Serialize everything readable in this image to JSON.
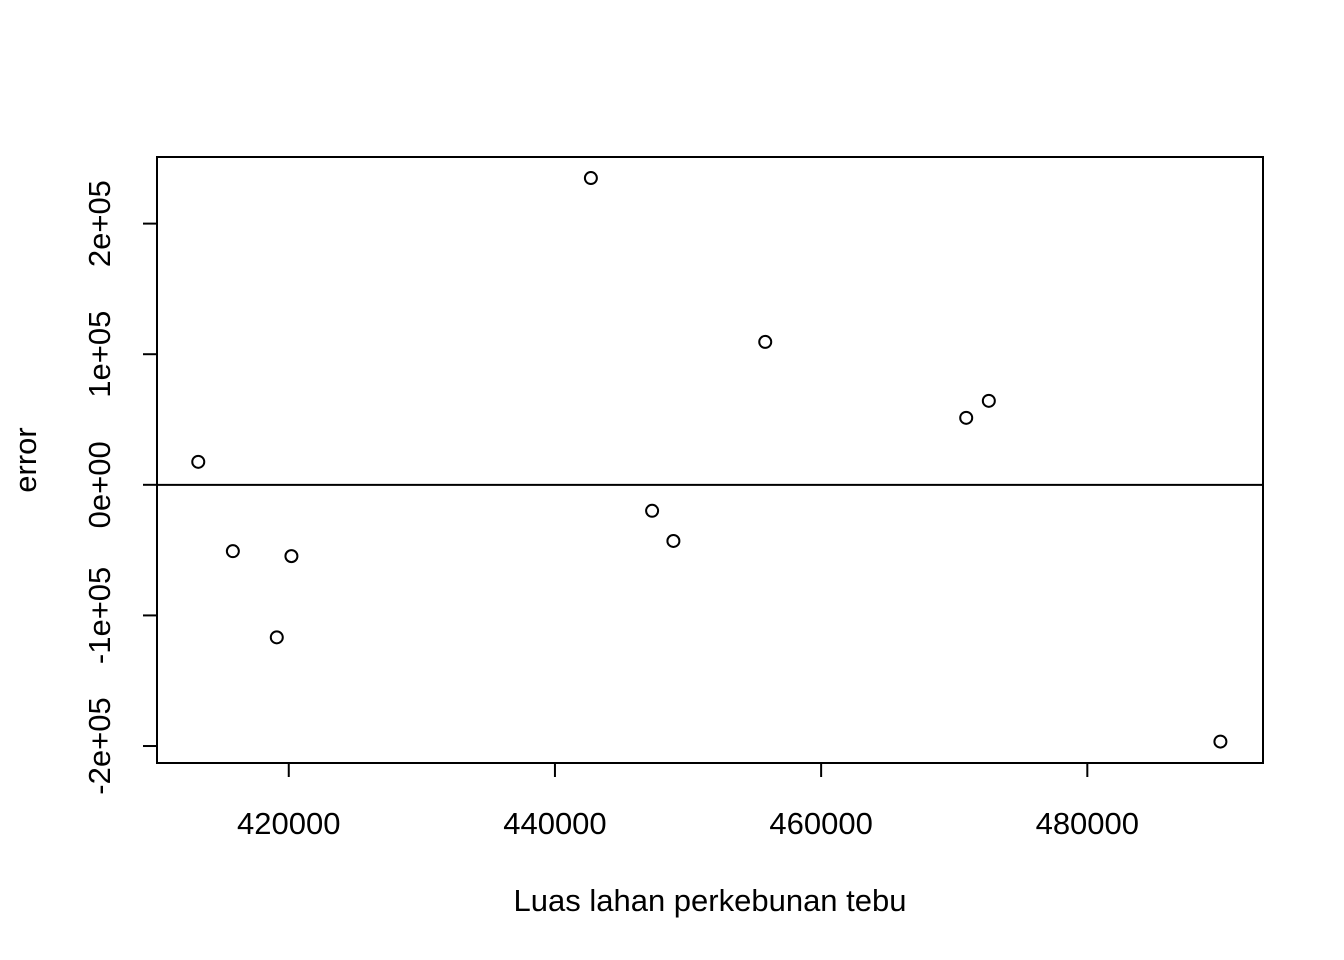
{
  "chart_data": {
    "type": "scatter",
    "title": "",
    "xlabel": "Luas lahan perkebunan tebu",
    "ylabel": "error",
    "xlim": [
      410100,
      493200
    ],
    "ylim": [
      -213000,
      251000
    ],
    "x_ticks": [
      420000,
      440000,
      460000,
      480000
    ],
    "x_tick_labels": [
      "420000",
      "440000",
      "460000",
      "480000"
    ],
    "y_ticks": [
      -200000,
      -100000,
      0,
      100000,
      200000
    ],
    "y_tick_labels": [
      "-2e+05",
      "-1e+05",
      "0e+00",
      "1e+05",
      "2e+05"
    ],
    "reference_line": {
      "orientation": "horizontal",
      "y": 0
    },
    "grid": false,
    "series": [
      {
        "marker": "open-circle",
        "points": [
          {
            "x": 413200,
            "y": 17600
          },
          {
            "x": 415800,
            "y": -50800
          },
          {
            "x": 419100,
            "y": -116800
          },
          {
            "x": 420200,
            "y": -54600
          },
          {
            "x": 442700,
            "y": 234900
          },
          {
            "x": 447300,
            "y": -19900
          },
          {
            "x": 448900,
            "y": -43000
          },
          {
            "x": 455800,
            "y": 109400
          },
          {
            "x": 470900,
            "y": 51300
          },
          {
            "x": 472600,
            "y": 64300
          },
          {
            "x": 490000,
            "y": -196600
          }
        ]
      }
    ]
  }
}
